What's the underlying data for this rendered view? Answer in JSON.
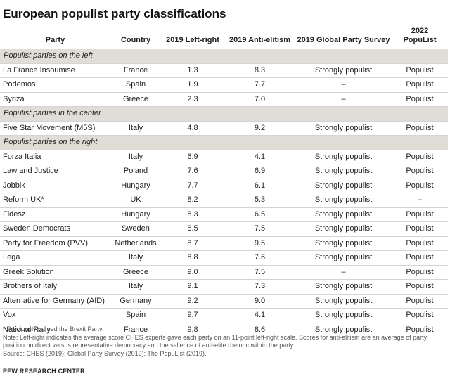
{
  "chart_data": {
    "type": "table",
    "title": "European populist party classifications",
    "columns": [
      "Party",
      "Country",
      "2019 Left-right",
      "2019 Anti-elitism",
      "2019 Global Party Survey",
      "2022\nPopuList"
    ],
    "sections": [
      {
        "label": "Populist parties on the left",
        "rows": [
          [
            "La France Insoumise",
            "France",
            "1.3",
            "8.3",
            "Strongly populist",
            "Populist"
          ],
          [
            "Podemos",
            "Spain",
            "1.9",
            "7.7",
            "–",
            "Populist"
          ],
          [
            "Syriza",
            "Greece",
            "2.3",
            "7.0",
            "–",
            "Populist"
          ]
        ]
      },
      {
        "label": "Populist parties in the center",
        "rows": [
          [
            "Five Star Movement (M5S)",
            "Italy",
            "4.8",
            "9.2",
            "Strongly populist",
            "Populist"
          ]
        ]
      },
      {
        "label": "Populist parties on the right",
        "rows": [
          [
            "Forza Italia",
            "Italy",
            "6.9",
            "4.1",
            "Strongly populist",
            "Populist"
          ],
          [
            "Law and Justice",
            "Poland",
            "7.6",
            "6.9",
            "Strongly populist",
            "Populist"
          ],
          [
            "Jobbik",
            "Hungary",
            "7.7",
            "6.1",
            "Strongly populist",
            "Populist"
          ],
          [
            "Reform UK*",
            "UK",
            "8.2",
            "5.3",
            "Strongly populist",
            "–"
          ],
          [
            "Fidesz",
            "Hungary",
            "8.3",
            "6.5",
            "Strongly populist",
            "Populist"
          ],
          [
            "Sweden Democrats",
            "Sweden",
            "8.5",
            "7.5",
            "Strongly populist",
            "Populist"
          ],
          [
            "Party for Freedom (PVV)",
            "Netherlands",
            "8.7",
            "9.5",
            "Strongly populist",
            "Populist"
          ],
          [
            "Lega",
            "Italy",
            "8.8",
            "7.6",
            "Strongly populist",
            "Populist"
          ],
          [
            "Greek Solution",
            "Greece",
            "9.0",
            "7.5",
            "–",
            "Populist"
          ],
          [
            "Brothers of Italy",
            "Italy",
            "9.1",
            "7.3",
            "Strongly populist",
            "Populist"
          ],
          [
            "Alternative for Germany (AfD)",
            "Germany",
            "9.2",
            "9.0",
            "Strongly populist",
            "Populist"
          ],
          [
            "Vox",
            "Spain",
            "9.7",
            "4.1",
            "Strongly populist",
            "Populist"
          ],
          [
            "National Rally",
            "France",
            "9.8",
            "8.6",
            "Strongly populist",
            "Populist"
          ]
        ]
      }
    ]
  },
  "notes": [
    "* Previously named the Brexit Party.",
    "Note: Left-right indicates the average score CHES experts gave each party on an 11-point left-right scale. Scores for anti-elitism are an average of party position on direct versus representative democracy and the salience of anti-elite rhetoric within the party.",
    "Source: CHES (2019); Global Party Survey (2019); The PopuList (2019)."
  ],
  "brand": "PEW RESEARCH CENTER"
}
